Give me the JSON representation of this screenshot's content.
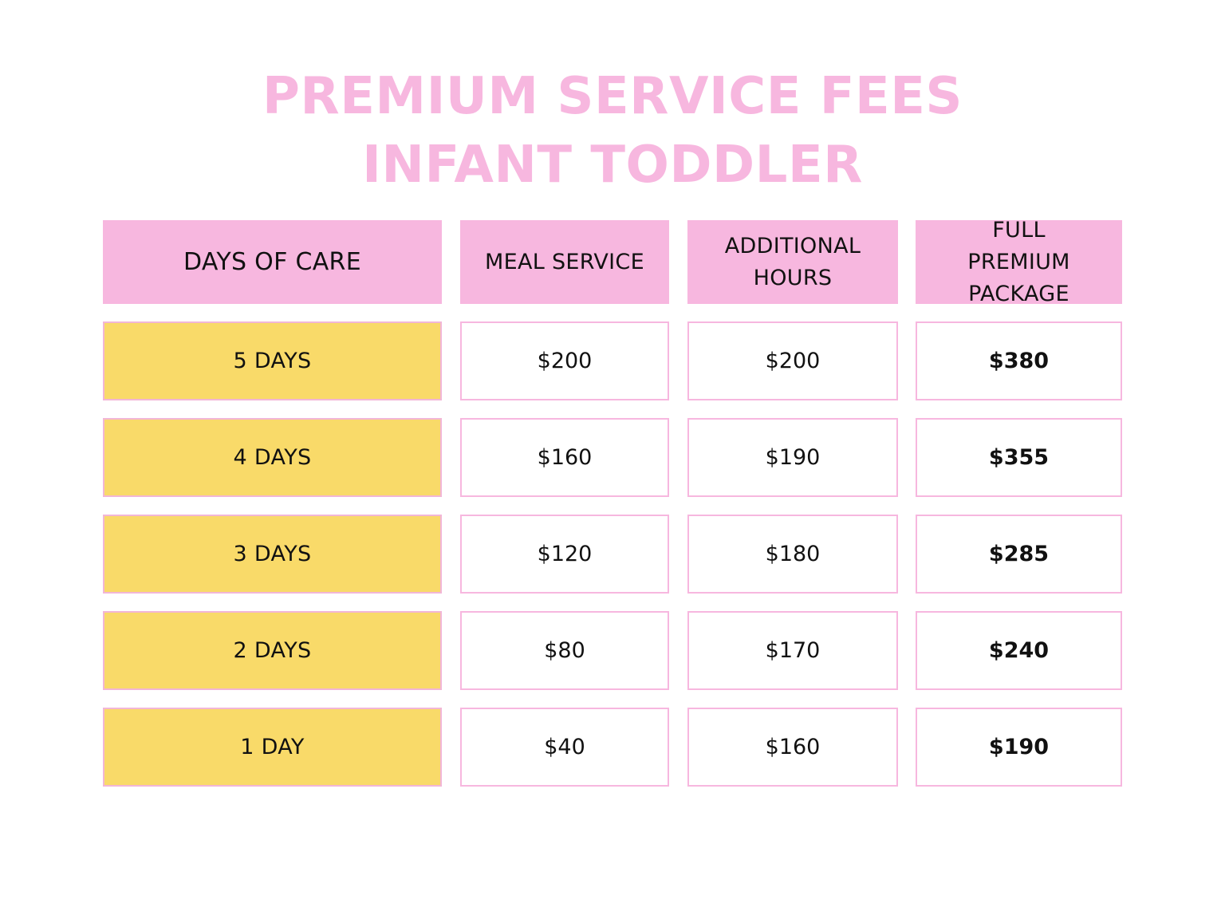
{
  "title": {
    "line1": "PREMIUM SERVICE FEES",
    "line2": "INFANT TODDLER"
  },
  "table": {
    "headers": [
      "DAYS OF CARE",
      "MEAL SERVICE",
      "ADDITIONAL HOURS",
      "FULL PREMIUM PACKAGE"
    ],
    "rows": [
      {
        "days": "5 DAYS",
        "meal": "$200",
        "hours": "$200",
        "full": "$380"
      },
      {
        "days": "4 DAYS",
        "meal": "$160",
        "hours": "$190",
        "full": "$355"
      },
      {
        "days": "3 DAYS",
        "meal": "$120",
        "hours": "$180",
        "full": "$285"
      },
      {
        "days": "2 DAYS",
        "meal": "$80",
        "hours": "$170",
        "full": "$240"
      },
      {
        "days": "1 DAY",
        "meal": "$40",
        "hours": "$160",
        "full": "$190"
      }
    ]
  },
  "colors": {
    "pink": "#f7b7df",
    "yellow": "#f9da69",
    "text": "#111111"
  }
}
